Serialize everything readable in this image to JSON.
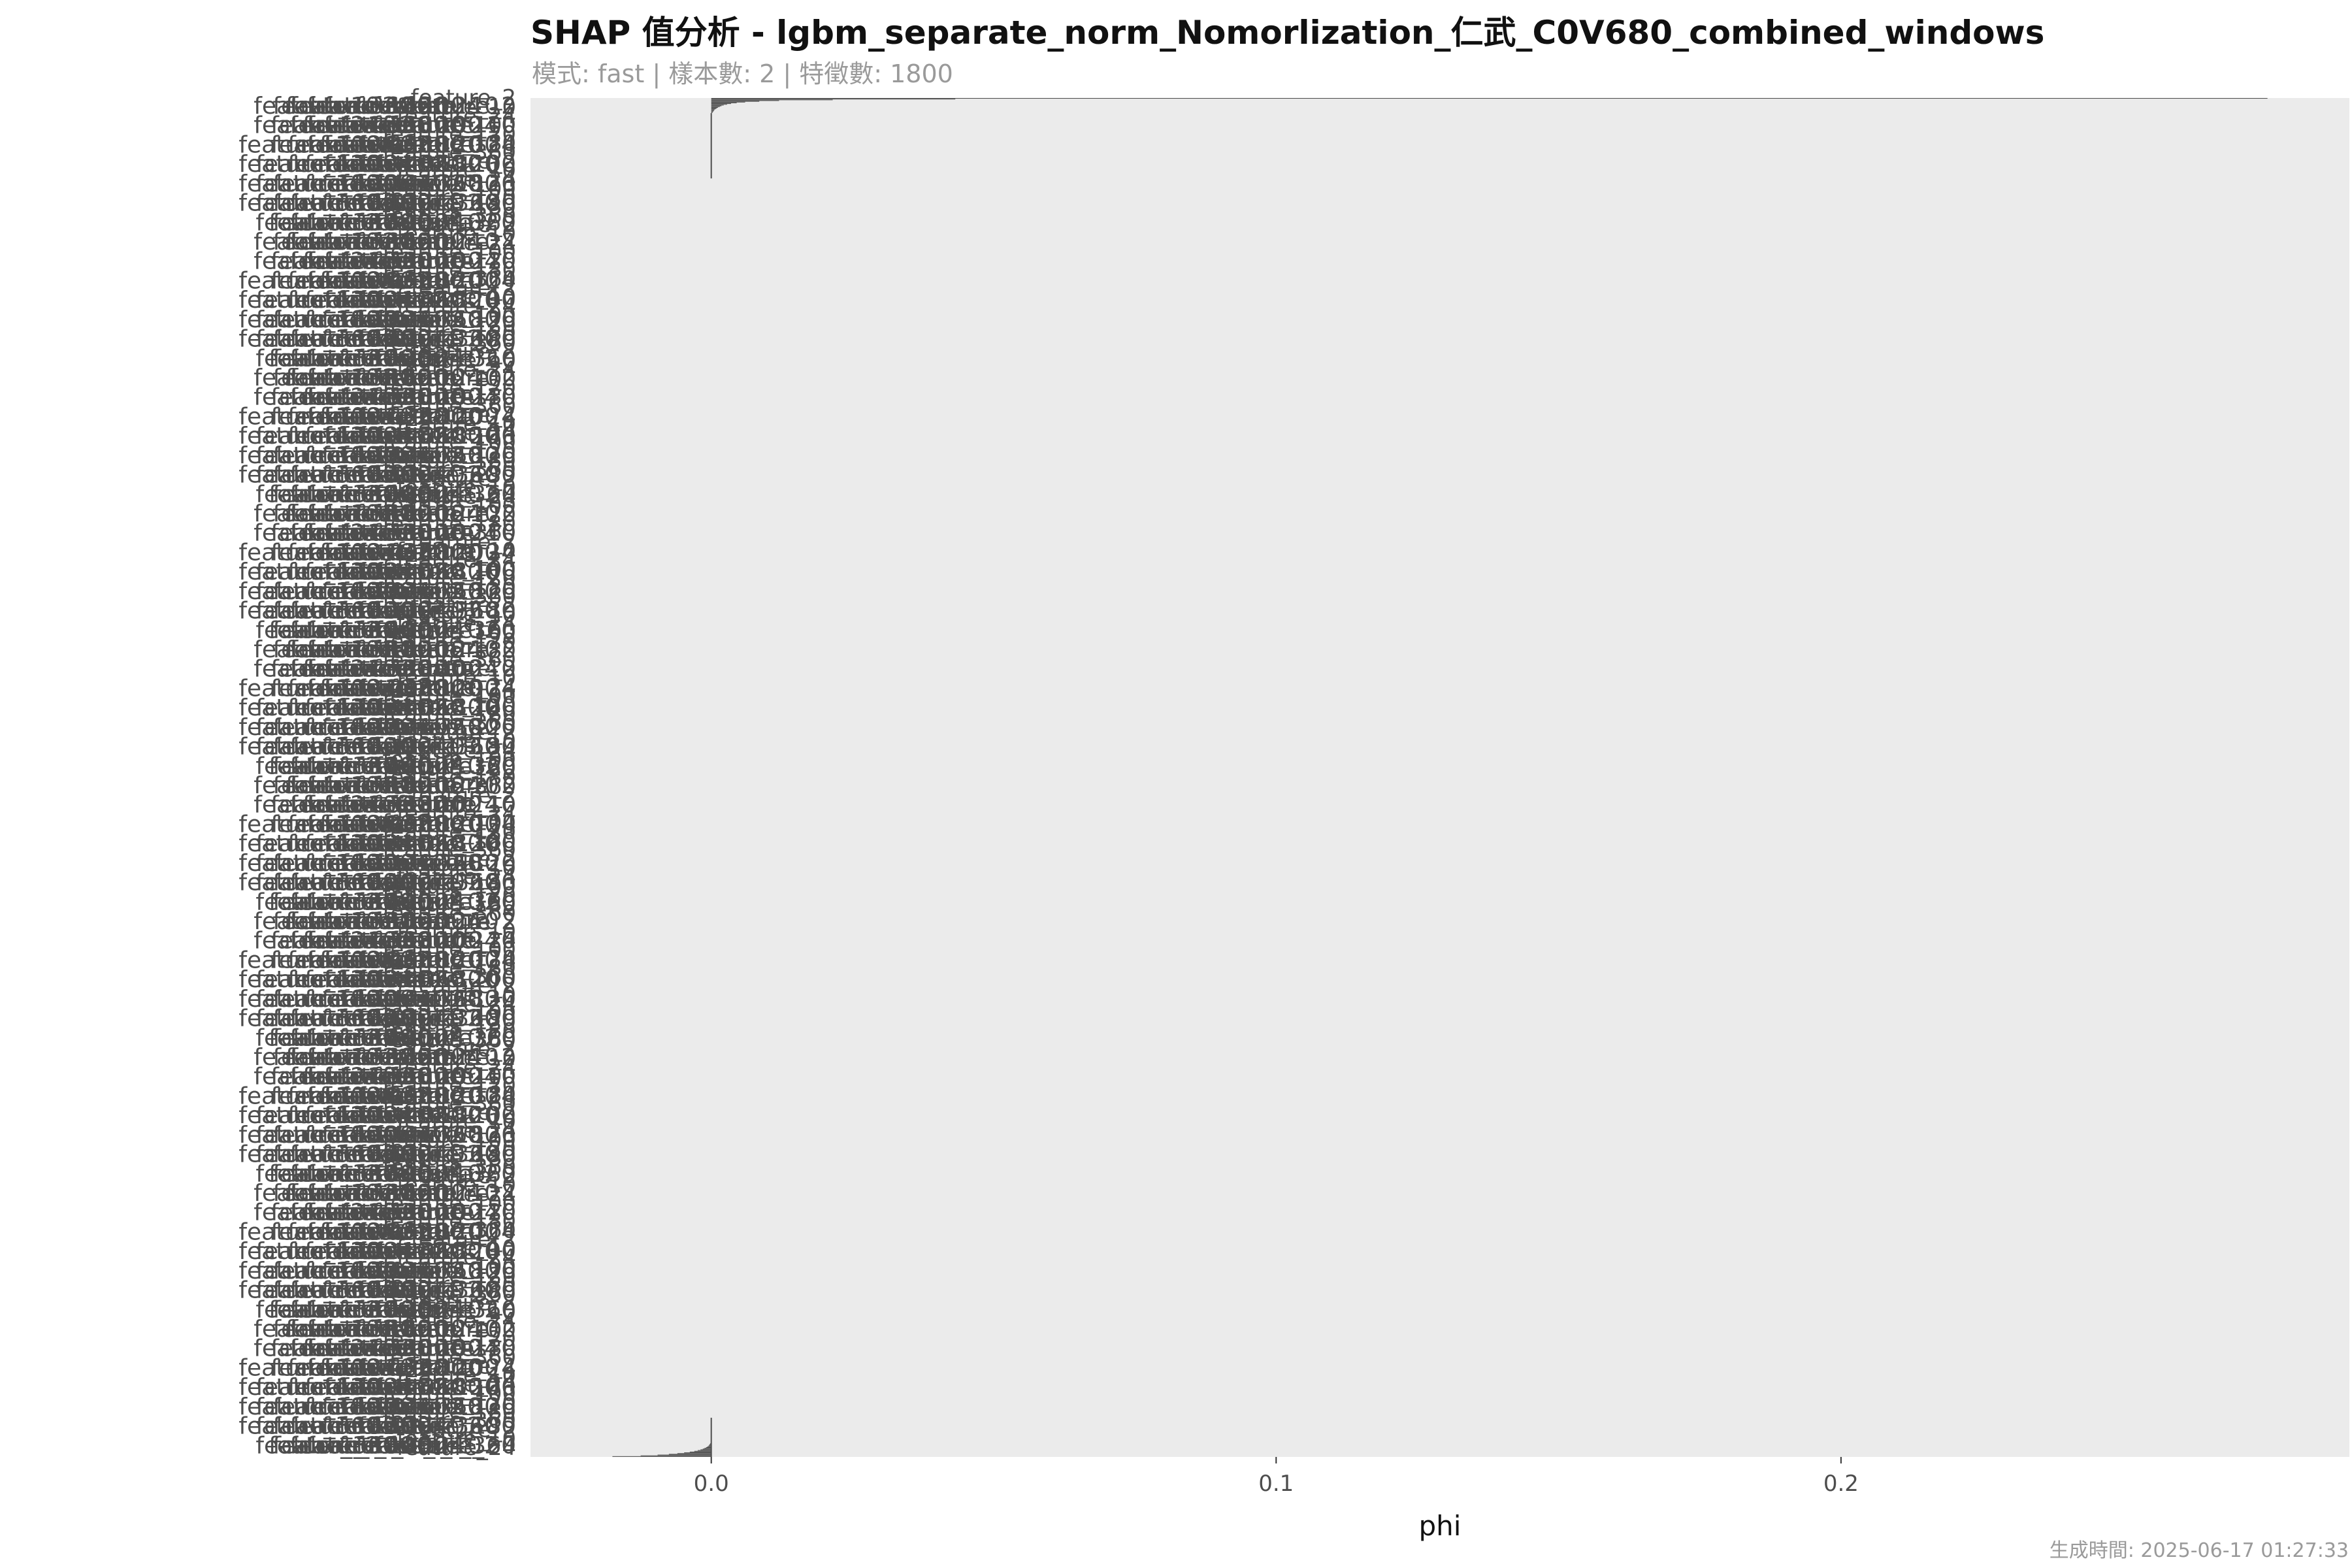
{
  "title": "SHAP 值分析 - lgbm_separate_norm_Nomorlization_仁武_C0V680_combined_windows",
  "subtitle": "模式: fast | 樣本數: 2 | 特徵數: 1800",
  "caption": "生成時間: 2025-06-17 01:27:33",
  "chart_data": {
    "type": "bar",
    "orientation": "horizontal",
    "title": "SHAP 值分析 - lgbm_separate_norm_Nomorlization_仁武_C0V680_combined_windows",
    "xlabel": "phi",
    "ylabel": "",
    "xlim": [
      -0.032,
      0.29
    ],
    "xticks": [
      0.0,
      0.1,
      0.2
    ],
    "x_tick_labels": [
      "0.0",
      "0.1",
      "0.2"
    ],
    "feature_count": 1800,
    "grid": false,
    "panel_background": "#EBEBEB",
    "bar_color": "#4D4D4D",
    "y_label_color": "#4D4D4D",
    "y_tick_labels_sample": [
      "feature_2",
      "feature_10",
      "feature_24",
      "feature_100",
      "feature_120",
      "feature_180",
      "feature_360"
    ],
    "series": [
      {
        "name": "",
        "top_positive_phi": [
          0.2755,
          0.0432,
          0.0215,
          0.012,
          0.0085,
          0.006,
          0.0045,
          0.0035,
          0.0028,
          0.0022,
          0.0018,
          0.0015,
          0.0012,
          0.001,
          0.0008,
          0.0006,
          0.0005,
          0.0004,
          0.0003,
          0.0002
        ],
        "bottom_negative_phi": [
          -0.0175,
          -0.0125,
          -0.0095,
          -0.0075,
          -0.006,
          -0.0048,
          -0.0038,
          -0.003,
          -0.0024,
          -0.0019,
          -0.0015,
          -0.0012,
          -0.0009,
          -0.0007,
          -0.0005,
          -0.0004,
          -0.0003,
          -0.0002,
          -0.0001
        ]
      }
    ]
  }
}
